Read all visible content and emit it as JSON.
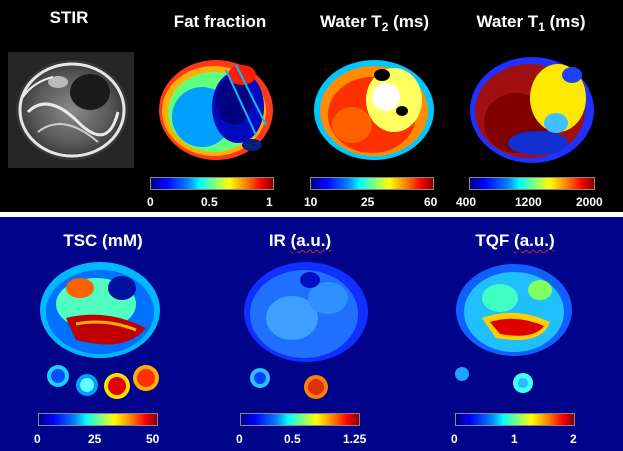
{
  "top_row": {
    "titles": {
      "stir": "STIR",
      "fat_fraction": "Fat fraction",
      "water_t2_main": "Water T",
      "water_t2_sub": "2",
      "water_t2_unit": " (ms)",
      "water_t1_main": "Water T",
      "water_t1_sub": "1",
      "water_t1_unit": " (ms)"
    },
    "colorbar_ticks": {
      "fat_fraction": [
        "0",
        "0.5",
        "1"
      ],
      "water_t2": [
        "10",
        "25",
        "60"
      ],
      "water_t1": [
        "400",
        "1200",
        "2000"
      ]
    }
  },
  "bottom_row": {
    "titles": {
      "tsc": "TSC (mM)",
      "ir_main": "IR ",
      "ir_unit": "(a.u.)",
      "tqf_main": "TQF ",
      "tqf_unit": "(a.u.)"
    },
    "colorbar_ticks": {
      "tsc": [
        "0",
        "25",
        "50"
      ],
      "ir": [
        "0",
        "0.5",
        "1.25"
      ],
      "tqf": [
        "0",
        "1",
        "2"
      ]
    }
  },
  "colors": {
    "top_background": "#000000",
    "bottom_background": "#00048a",
    "divider": "#ffffff",
    "text": "#ffffff"
  }
}
